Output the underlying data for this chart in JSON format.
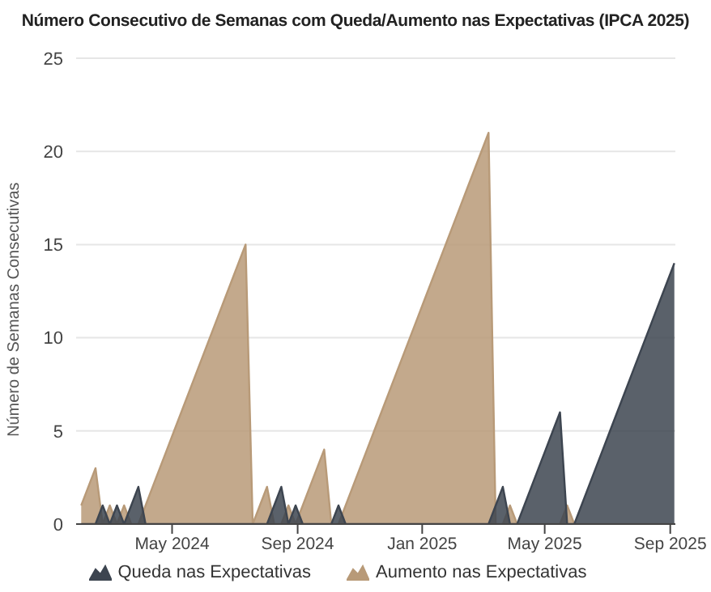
{
  "chart_data": {
    "type": "area",
    "title": "Número Consecutivo de Semanas com Queda/Aumento nas Expectativas (IPCA 2025)",
    "ylabel": "Número de Semanas Consecutivas",
    "x": [
      "2024-02-02",
      "2024-02-09",
      "2024-02-16",
      "2024-02-23",
      "2024-03-01",
      "2024-03-08",
      "2024-03-15",
      "2024-03-22",
      "2024-03-29",
      "2024-04-05",
      "2024-04-12",
      "2024-04-19",
      "2024-04-26",
      "2024-05-03",
      "2024-05-10",
      "2024-05-17",
      "2024-05-24",
      "2024-05-31",
      "2024-06-07",
      "2024-06-14",
      "2024-06-21",
      "2024-06-28",
      "2024-07-05",
      "2024-07-12",
      "2024-07-19",
      "2024-07-26",
      "2024-08-02",
      "2024-08-09",
      "2024-08-16",
      "2024-08-23",
      "2024-08-30",
      "2024-09-06",
      "2024-09-13",
      "2024-09-20",
      "2024-09-27",
      "2024-10-04",
      "2024-10-11",
      "2024-10-18",
      "2024-10-25",
      "2024-11-01",
      "2024-11-08",
      "2024-11-15",
      "2024-11-22",
      "2024-11-29",
      "2024-12-06",
      "2024-12-13",
      "2024-12-20",
      "2024-12-27",
      "2025-01-03",
      "2025-01-10",
      "2025-01-17",
      "2025-01-24",
      "2025-01-31",
      "2025-02-07",
      "2025-02-14",
      "2025-02-21",
      "2025-02-28",
      "2025-03-07",
      "2025-03-14",
      "2025-03-21",
      "2025-03-28",
      "2025-04-04",
      "2025-04-11",
      "2025-04-18",
      "2025-04-25",
      "2025-05-02",
      "2025-05-09",
      "2025-05-16",
      "2025-05-23",
      "2025-05-30",
      "2025-06-06",
      "2025-06-13",
      "2025-06-20",
      "2025-06-27",
      "2025-07-04",
      "2025-07-11",
      "2025-07-18",
      "2025-07-25",
      "2025-08-01",
      "2025-08-08",
      "2025-08-15",
      "2025-08-22",
      "2025-08-29",
      "2025-09-05"
    ],
    "series": [
      {
        "name": "Queda nas Expectativas",
        "color": "#3d4550",
        "values": [
          0,
          0,
          0,
          1,
          0,
          1,
          0,
          1,
          2,
          0,
          0,
          0,
          0,
          0,
          0,
          0,
          0,
          0,
          0,
          0,
          0,
          0,
          0,
          0,
          0,
          0,
          0,
          1,
          2,
          0,
          1,
          0,
          0,
          0,
          0,
          0,
          1,
          0,
          0,
          0,
          0,
          0,
          0,
          0,
          0,
          0,
          0,
          0,
          0,
          0,
          0,
          0,
          0,
          0,
          0,
          0,
          0,
          0,
          1,
          2,
          0,
          0,
          1,
          2,
          3,
          4,
          5,
          6,
          0,
          0,
          1,
          2,
          3,
          4,
          5,
          6,
          7,
          8,
          9,
          10,
          11,
          12,
          13,
          14
        ]
      },
      {
        "name": "Aumento nas Expectativas",
        "color": "#b89a78",
        "values": [
          1,
          2,
          3,
          0,
          1,
          0,
          1,
          0,
          0,
          1,
          2,
          3,
          4,
          5,
          6,
          7,
          8,
          9,
          10,
          11,
          12,
          13,
          14,
          15,
          0,
          1,
          2,
          0,
          0,
          1,
          0,
          1,
          2,
          3,
          4,
          0,
          0,
          1,
          2,
          3,
          4,
          5,
          6,
          7,
          8,
          9,
          10,
          11,
          12,
          13,
          14,
          15,
          16,
          17,
          18,
          19,
          20,
          21,
          0,
          0,
          1,
          0,
          0,
          0,
          0,
          0,
          0,
          0,
          1,
          0,
          0,
          0,
          0,
          0,
          0,
          0,
          0,
          0,
          0,
          0,
          0,
          0,
          0,
          0
        ]
      }
    ],
    "xlim": [
      "2024-01-28",
      "2025-09-06"
    ],
    "xticks": [
      {
        "value": "2024-05-01",
        "label": "May 2024"
      },
      {
        "value": "2024-09-01",
        "label": "Sep 2024"
      },
      {
        "value": "2025-01-01",
        "label": "Jan 2025"
      },
      {
        "value": "2025-05-01",
        "label": "May 2025"
      },
      {
        "value": "2025-09-01",
        "label": "Sep 2025"
      }
    ],
    "ylim": [
      0,
      25
    ],
    "yticks": [
      0,
      5,
      10,
      15,
      20,
      25
    ],
    "grid": "y",
    "legend": "bottom"
  }
}
